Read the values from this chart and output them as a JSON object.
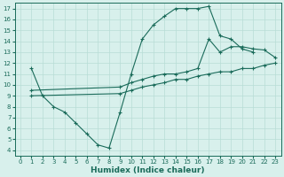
{
  "line1_x": [
    1,
    2,
    3,
    4,
    5,
    6,
    7,
    8,
    9,
    10,
    11,
    12,
    13,
    14,
    15,
    16,
    17,
    18,
    19,
    20,
    21
  ],
  "line1_y": [
    11.5,
    9.0,
    8.0,
    7.5,
    6.5,
    5.5,
    4.5,
    4.2,
    7.5,
    11.0,
    14.2,
    15.5,
    16.3,
    17.0,
    17.0,
    17.0,
    17.2,
    14.5,
    14.2,
    13.3,
    13.0
  ],
  "line2_x": [
    1,
    9,
    10,
    11,
    12,
    13,
    14,
    15,
    16,
    17,
    18,
    19,
    20,
    21,
    22,
    23
  ],
  "line2_y": [
    9.5,
    9.8,
    10.2,
    10.5,
    10.8,
    11.0,
    11.0,
    11.2,
    11.5,
    14.2,
    13.0,
    13.5,
    13.5,
    13.3,
    13.2,
    12.5
  ],
  "line3_x": [
    1,
    9,
    10,
    11,
    12,
    13,
    14,
    15,
    16,
    17,
    18,
    19,
    20,
    21,
    22,
    23
  ],
  "line3_y": [
    9.0,
    9.2,
    9.5,
    9.8,
    10.0,
    10.2,
    10.5,
    10.5,
    10.8,
    11.0,
    11.2,
    11.2,
    11.5,
    11.5,
    11.8,
    12.0
  ],
  "line_color": "#1a6b5a",
  "bg_color": "#d8f0ec",
  "grid_color": "#b8ddd6",
  "xlabel": "Humidex (Indice chaleur)",
  "xlabel_fontsize": 6.5,
  "xlim": [
    -0.5,
    23.5
  ],
  "ylim": [
    3.5,
    17.5
  ],
  "xticks": [
    0,
    1,
    2,
    3,
    4,
    5,
    6,
    7,
    8,
    9,
    10,
    11,
    12,
    13,
    14,
    15,
    16,
    17,
    18,
    19,
    20,
    21,
    22,
    23
  ],
  "yticks": [
    4,
    5,
    6,
    7,
    8,
    9,
    10,
    11,
    12,
    13,
    14,
    15,
    16,
    17
  ],
  "marker": "+",
  "marker_size": 3.5,
  "line_width": 0.8
}
